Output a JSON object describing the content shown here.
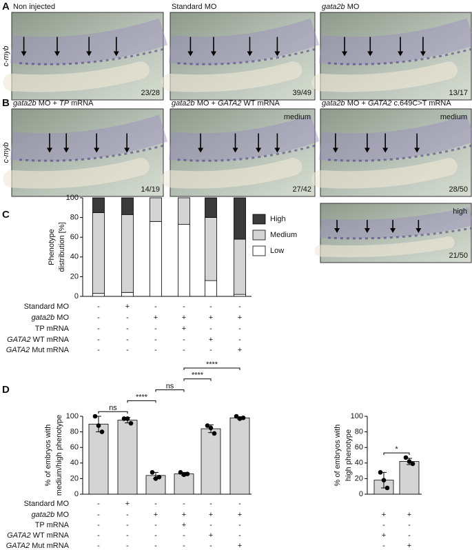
{
  "figure": {
    "panels": [
      {
        "letter": "A",
        "ylabel": "c-myb",
        "images": [
          {
            "title": [
              {
                "text": "Non injected"
              }
            ],
            "score": "23/28"
          },
          {
            "title": [
              {
                "text": "Standard MO"
              }
            ],
            "score": "39/49"
          },
          {
            "title": [
              {
                "text": "gata2b",
                "italic": true
              },
              {
                "text": " MO"
              }
            ],
            "score": "13/17"
          }
        ]
      },
      {
        "letter": "B",
        "ylabel": "c-myb",
        "images": [
          {
            "title": [
              {
                "text": "gata2b",
                "italic": true
              },
              {
                "text": " MO + "
              },
              {
                "text": "TP",
                "italic": true
              },
              {
                "text": " mRNA"
              }
            ],
            "score": "14/19"
          },
          {
            "title": [
              {
                "text": "gata2b",
                "italic": true
              },
              {
                "text": " MO + "
              },
              {
                "text": "GATA2",
                "italic": true
              },
              {
                "text": " WT mRNA"
              }
            ],
            "level": "medium",
            "score": "27/42"
          },
          {
            "title": [
              {
                "text": "gata2b",
                "italic": true
              },
              {
                "text": " MO + "
              },
              {
                "text": "GATA2",
                "italic": true
              },
              {
                "text": " c.649C>T mRNA"
              }
            ],
            "level": "medium",
            "score": "28/50"
          },
          {
            "level": "high",
            "score": "21/50"
          }
        ]
      }
    ]
  },
  "chart_data": [
    {
      "type": "stacked_bar",
      "letter": "C",
      "ylabel": [
        "Phenotype",
        "distribution [%]"
      ],
      "ylim": [
        0,
        100
      ],
      "yticks": [
        0,
        20,
        40,
        60,
        80,
        100
      ],
      "series": [
        {
          "name": "Low",
          "color": "#ffffff",
          "values": [
            3,
            4,
            76,
            73,
            16,
            2
          ]
        },
        {
          "name": "Medium",
          "color": "#d4d4d4",
          "values": [
            82,
            79,
            24,
            27,
            64,
            56
          ]
        },
        {
          "name": "High",
          "color": "#3a3a3a",
          "values": [
            15,
            17,
            0,
            0,
            20,
            42
          ]
        }
      ],
      "conditions": [
        {
          "label": [
            {
              "text": "Standard MO"
            }
          ],
          "signs": [
            "-",
            "+",
            "-",
            "-",
            "-",
            "-"
          ]
        },
        {
          "label": [
            {
              "text": "gata2b",
              "italic": true
            },
            {
              "text": " MO"
            }
          ],
          "signs": [
            "-",
            "-",
            "+",
            "+",
            "+",
            "+"
          ]
        },
        {
          "label": [
            {
              "text": "TP mRNA"
            }
          ],
          "signs": [
            "-",
            "-",
            "-",
            "+",
            "-",
            "-"
          ]
        },
        {
          "label": [
            {
              "text": "GATA2",
              "italic": true
            },
            {
              "text": " WT mRNA"
            }
          ],
          "signs": [
            "-",
            "-",
            "-",
            "-",
            "+",
            "-"
          ]
        },
        {
          "label": [
            {
              "text": "GATA2",
              "italic": true
            },
            {
              "text": " Mut mRNA"
            }
          ],
          "signs": [
            "-",
            "-",
            "-",
            "-",
            "-",
            "+"
          ]
        }
      ]
    },
    {
      "type": "bar_dot",
      "letter": "D",
      "ylabel": [
        "% of embryos with",
        "medium/high phenotype"
      ],
      "ylim": [
        0,
        100
      ],
      "yticks": [
        0,
        20,
        40,
        60,
        80,
        100
      ],
      "color": "#d4d4d4",
      "values": [
        90,
        95,
        24,
        26,
        84,
        98
      ],
      "errors": [
        10,
        3.5,
        4,
        2,
        5,
        1.5
      ],
      "points": [
        [
          100,
          88,
          80
        ],
        [
          97,
          97,
          91
        ],
        [
          28,
          20,
          22
        ],
        [
          28,
          25,
          26
        ],
        [
          88,
          85,
          78
        ],
        [
          100,
          97,
          98
        ]
      ],
      "annotations": [
        {
          "text": "ns",
          "from": 0,
          "to": 1
        },
        {
          "text": "****",
          "from": 1,
          "to": 2
        },
        {
          "text": "ns",
          "from": 2,
          "to": 3
        },
        {
          "text": "****",
          "from": 3,
          "to": 4
        },
        {
          "text": "****",
          "from": 3,
          "to": 5
        }
      ],
      "conditions": [
        {
          "label": [
            {
              "text": "Standard MO"
            }
          ],
          "signs": [
            "-",
            "+",
            "-",
            "-",
            "-",
            "-"
          ]
        },
        {
          "label": [
            {
              "text": "gata2b",
              "italic": true
            },
            {
              "text": " MO"
            }
          ],
          "signs": [
            "-",
            "-",
            "+",
            "+",
            "+",
            "+"
          ]
        },
        {
          "label": [
            {
              "text": "TP mRNA"
            }
          ],
          "signs": [
            "-",
            "-",
            "-",
            "+",
            "-",
            "-"
          ]
        },
        {
          "label": [
            {
              "text": "GATA2",
              "italic": true
            },
            {
              "text": " WT mRNA"
            }
          ],
          "signs": [
            "-",
            "-",
            "-",
            "-",
            "+",
            "-"
          ]
        },
        {
          "label": [
            {
              "text": "GATA2",
              "italic": true
            },
            {
              "text": " Mut mRNA"
            }
          ],
          "signs": [
            "-",
            "-",
            "-",
            "-",
            "-",
            "+"
          ]
        }
      ]
    },
    {
      "type": "bar_dot",
      "ylabel": [
        "% of embryos with",
        "high phenotype"
      ],
      "ylim": [
        0,
        100
      ],
      "yticks": [
        0,
        20,
        40,
        60,
        80,
        100
      ],
      "color": "#d4d4d4",
      "values": [
        18,
        42
      ],
      "errors": [
        10,
        4
      ],
      "points": [
        [
          28,
          18,
          8
        ],
        [
          47,
          42,
          39
        ]
      ],
      "annotations": [
        {
          "text": "*",
          "from": 0,
          "to": 1
        }
      ],
      "conditions": [
        {
          "signs": [
            "+",
            "+"
          ]
        },
        {
          "signs": [
            "-",
            "-"
          ]
        },
        {
          "signs": [
            "+",
            "-"
          ]
        },
        {
          "signs": [
            "-",
            "+"
          ]
        }
      ]
    }
  ]
}
